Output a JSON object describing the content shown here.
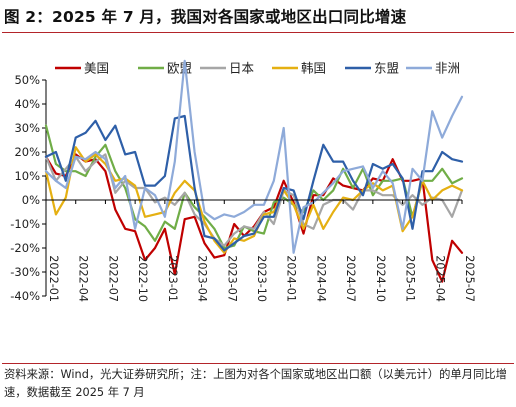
{
  "figure": {
    "title": "图 2：2025 年 7 月，我国对各国家或地区出口同比增速",
    "source": "资料来源：Wind，光大证券研究所；注：上图为对各个国家或地区出口额（以美元计）的单月同比增速，数据截至 2025 年 7 月"
  },
  "chart_data": {
    "type": "line",
    "title": "",
    "xlabel": "",
    "ylabel": "",
    "ylim": [
      -40,
      50
    ],
    "y_ticks": [
      "-40%",
      "-30%",
      "-20%",
      "-10%",
      "0%",
      "10%",
      "20%",
      "30%",
      "40%",
      "50%"
    ],
    "x_tick_labels": [
      "2022-01",
      "2022-04",
      "2022-07",
      "2022-10",
      "2023-01",
      "2023-04",
      "2023-07",
      "2023-10",
      "2024-01",
      "2024-04",
      "2024-07",
      "2024-10",
      "2025-01",
      "2025-04",
      "2025-07"
    ],
    "grid": false,
    "legend_position": "top",
    "x": [
      "2022-01",
      "2022-02",
      "2022-03",
      "2022-04",
      "2022-05",
      "2022-06",
      "2022-07",
      "2022-08",
      "2022-09",
      "2022-10",
      "2022-11",
      "2022-12",
      "2023-01",
      "2023-02",
      "2023-03",
      "2023-04",
      "2023-05",
      "2023-06",
      "2023-07",
      "2023-08",
      "2023-09",
      "2023-10",
      "2023-11",
      "2023-12",
      "2024-01",
      "2024-02",
      "2024-03",
      "2024-04",
      "2024-05",
      "2024-06",
      "2024-07",
      "2024-08",
      "2024-09",
      "2024-10",
      "2024-11",
      "2024-12",
      "2025-01",
      "2025-02",
      "2025-03",
      "2025-04",
      "2025-05",
      "2025-06",
      "2025-07"
    ],
    "series": [
      {
        "name": "美国",
        "color": "#c00000",
        "values": [
          18,
          11,
          10,
          19,
          16,
          17,
          12,
          -4,
          -12,
          -13,
          -25,
          -20,
          -12,
          -31,
          -8,
          -7,
          -18,
          -24,
          -23,
          -10,
          -15,
          -11,
          -5,
          -3,
          8,
          -1,
          -14,
          2,
          2,
          9,
          6,
          5,
          4,
          9,
          8,
          17,
          8,
          8,
          9,
          -25,
          -34,
          -17,
          -22
        ]
      },
      {
        "name": "欧盟",
        "color": "#70ad47",
        "values": [
          31,
          15,
          12,
          12,
          10,
          18,
          23,
          12,
          5,
          -8,
          -11,
          -17,
          -9,
          -12,
          3,
          -3,
          -7,
          -12,
          -20,
          -19,
          -11,
          -13,
          -14,
          -1,
          1,
          -2,
          -5,
          4,
          0,
          4,
          13,
          5,
          13,
          2,
          8,
          8,
          9,
          -7,
          8,
          8,
          13,
          7,
          9
        ]
      },
      {
        "name": "日本",
        "color": "#a6a6a6",
        "values": [
          18,
          8,
          13,
          18,
          12,
          16,
          19,
          3,
          8,
          5,
          5,
          -1,
          1,
          -2,
          3,
          -6,
          -10,
          -16,
          -19,
          -14,
          -11,
          -12,
          -5,
          -10,
          4,
          2,
          -10,
          -12,
          -2,
          0,
          0,
          -4,
          4,
          4,
          2,
          2,
          -2,
          2,
          -2,
          1,
          0,
          -7,
          4
        ]
      },
      {
        "name": "韩国",
        "color": "#e5b012",
        "values": [
          12,
          -6,
          1,
          22,
          16,
          19,
          15,
          8,
          9,
          6,
          -7,
          -6,
          -5,
          3,
          8,
          4,
          -9,
          -17,
          -22,
          -16,
          -17,
          -15,
          -6,
          -5,
          4,
          -2,
          -12,
          -2,
          -12,
          -5,
          1,
          0,
          4,
          7,
          4,
          6,
          -13,
          -7,
          8,
          0,
          4,
          6,
          4
        ]
      },
      {
        "name": "东盟",
        "color": "#2e5fa8",
        "values": [
          18,
          20,
          8,
          26,
          28,
          33,
          25,
          31,
          19,
          20,
          6,
          6,
          10,
          34,
          35,
          5,
          -15,
          -16,
          -21,
          -18,
          -15,
          -14,
          -7,
          -7,
          5,
          4,
          -8,
          8,
          23,
          16,
          16,
          8,
          2,
          15,
          13,
          15,
          9,
          -12,
          12,
          12,
          20,
          17,
          16
        ]
      },
      {
        "name": "非洲",
        "color": "#8eaad9",
        "values": [
          12,
          8,
          5,
          18,
          17,
          20,
          17,
          5,
          10,
          -12,
          5,
          2,
          -7,
          16,
          58,
          20,
          -5,
          -8,
          -6,
          -7,
          -5,
          -2,
          -2,
          8,
          30,
          -22,
          -3,
          -1,
          3,
          7,
          12,
          13,
          14,
          5,
          12,
          7,
          -12,
          13,
          8,
          37,
          26,
          35,
          43
        ]
      }
    ]
  }
}
